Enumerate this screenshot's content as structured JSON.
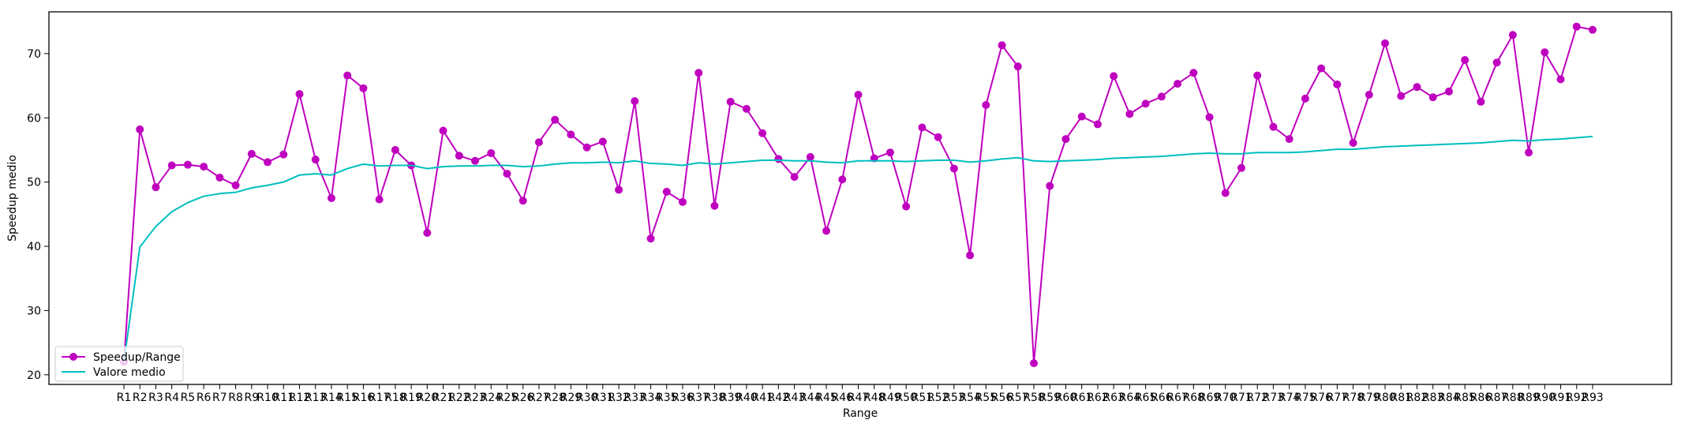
{
  "chart_data": {
    "type": "line",
    "xlabel": "Range",
    "ylabel": "Speedup medio",
    "ylim": [
      18.5,
      76.5
    ],
    "yticks": [
      20,
      30,
      40,
      50,
      60,
      70
    ],
    "grid": false,
    "legend_position": "lower-left",
    "categories": [
      "R1",
      "R2",
      "R3",
      "R4",
      "R5",
      "R6",
      "R7",
      "R8",
      "R9",
      "R10",
      "R11",
      "R12",
      "R13",
      "R14",
      "R15",
      "R16",
      "R17",
      "R18",
      "R19",
      "R20",
      "R21",
      "R22",
      "R23",
      "R24",
      "R25",
      "R26",
      "R27",
      "R28",
      "R29",
      "R30",
      "R31",
      "R32",
      "R33",
      "R34",
      "R35",
      "R36",
      "R37",
      "R38",
      "R39",
      "R40",
      "R41",
      "R42",
      "R43",
      "R44",
      "R45",
      "R46",
      "R47",
      "R48",
      "R49",
      "R50",
      "R51",
      "R52",
      "R53",
      "R54",
      "R55",
      "R56",
      "R57",
      "R58",
      "R59",
      "R60",
      "R61",
      "R62",
      "R63",
      "R64",
      "R65",
      "R66",
      "R67",
      "R68",
      "R69",
      "R70",
      "R71",
      "R72",
      "R73",
      "R74",
      "R75",
      "R76",
      "R77",
      "R78",
      "R79",
      "R80",
      "R81",
      "R82",
      "R83",
      "R84",
      "R85",
      "R86",
      "R87",
      "R88",
      "R89",
      "R90",
      "R91",
      "R92",
      "R93"
    ],
    "series": [
      {
        "name": "Speedup/Range",
        "color": "#bf00bf",
        "marker": "circle",
        "values": [
          22.0,
          58.2,
          49.2,
          52.6,
          52.7,
          52.4,
          50.7,
          49.5,
          54.4,
          53.1,
          54.3,
          63.7,
          53.5,
          47.5,
          66.6,
          64.6,
          47.3,
          55.0,
          52.6,
          42.1,
          58.0,
          54.1,
          53.3,
          54.5,
          51.3,
          47.1,
          56.2,
          59.7,
          57.4,
          55.4,
          56.3,
          48.8,
          62.6,
          41.2,
          48.5,
          46.9,
          67.0,
          46.3,
          62.5,
          61.4,
          57.6,
          53.6,
          50.8,
          53.9,
          42.4,
          50.4,
          63.6,
          53.7,
          54.6,
          46.2,
          58.5,
          57.0,
          52.1,
          38.6,
          62.0,
          71.3,
          68.0,
          21.8,
          49.4,
          56.7,
          60.2,
          59.0,
          66.5,
          60.6,
          62.2,
          63.3,
          65.3,
          67.0,
          60.1,
          48.3,
          52.2,
          66.6,
          58.6,
          56.7,
          63.0,
          67.7,
          65.2,
          56.1,
          63.6,
          71.6,
          63.4,
          64.8,
          63.2,
          64.1,
          69.0,
          62.5,
          68.6,
          72.9,
          54.6,
          70.2,
          66.0,
          74.2,
          73.7
        ]
      },
      {
        "name": "Valore medio",
        "color": "#00bfbf",
        "marker": "none",
        "values": [
          22.0,
          39.9,
          43.1,
          45.4,
          46.8,
          47.8,
          48.2,
          48.4,
          49.1,
          49.5,
          50.0,
          51.1,
          51.3,
          51.1,
          52.1,
          52.8,
          52.5,
          52.6,
          52.6,
          52.1,
          52.4,
          52.5,
          52.5,
          52.6,
          52.6,
          52.4,
          52.5,
          52.8,
          53.0,
          53.0,
          53.1,
          53.0,
          53.3,
          52.9,
          52.8,
          52.6,
          53.0,
          52.8,
          53.0,
          53.2,
          53.4,
          53.4,
          53.3,
          53.3,
          53.1,
          53.0,
          53.3,
          53.3,
          53.3,
          53.2,
          53.3,
          53.4,
          53.4,
          53.1,
          53.3,
          53.6,
          53.8,
          53.3,
          53.2,
          53.3,
          53.4,
          53.5,
          53.7,
          53.8,
          53.9,
          54.0,
          54.2,
          54.4,
          54.5,
          54.4,
          54.4,
          54.6,
          54.6,
          54.6,
          54.7,
          54.9,
          55.1,
          55.1,
          55.3,
          55.5,
          55.6,
          55.7,
          55.8,
          55.9,
          56.0,
          56.1,
          56.3,
          56.5,
          56.4,
          56.6,
          56.7,
          56.9,
          57.1
        ]
      }
    ]
  }
}
